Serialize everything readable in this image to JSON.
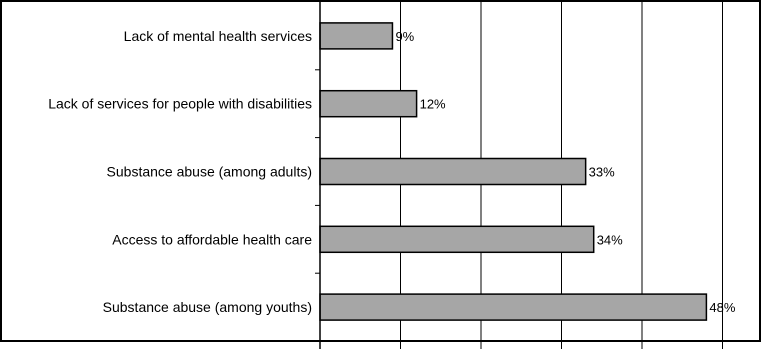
{
  "chart_data": {
    "type": "bar",
    "orientation": "horizontal",
    "categories": [
      "Lack of mental health services",
      "Lack of services for people with disabilities",
      "Substance abuse (among adults)",
      "Access to affordable health care",
      "Substance abuse (among youths)"
    ],
    "values": [
      9,
      12,
      33,
      34,
      48
    ],
    "value_labels": [
      "9%",
      "12%",
      "33%",
      "34%",
      "48%"
    ],
    "xlim": [
      0,
      50
    ],
    "grid": true,
    "legend": "none",
    "title": "",
    "xlabel": "",
    "ylabel": "",
    "colors": {
      "bar_fill": "#a6a6a6",
      "bar_stroke": "#000000",
      "grid": "#000000",
      "frame": "#000000",
      "background": "#ffffff"
    }
  }
}
